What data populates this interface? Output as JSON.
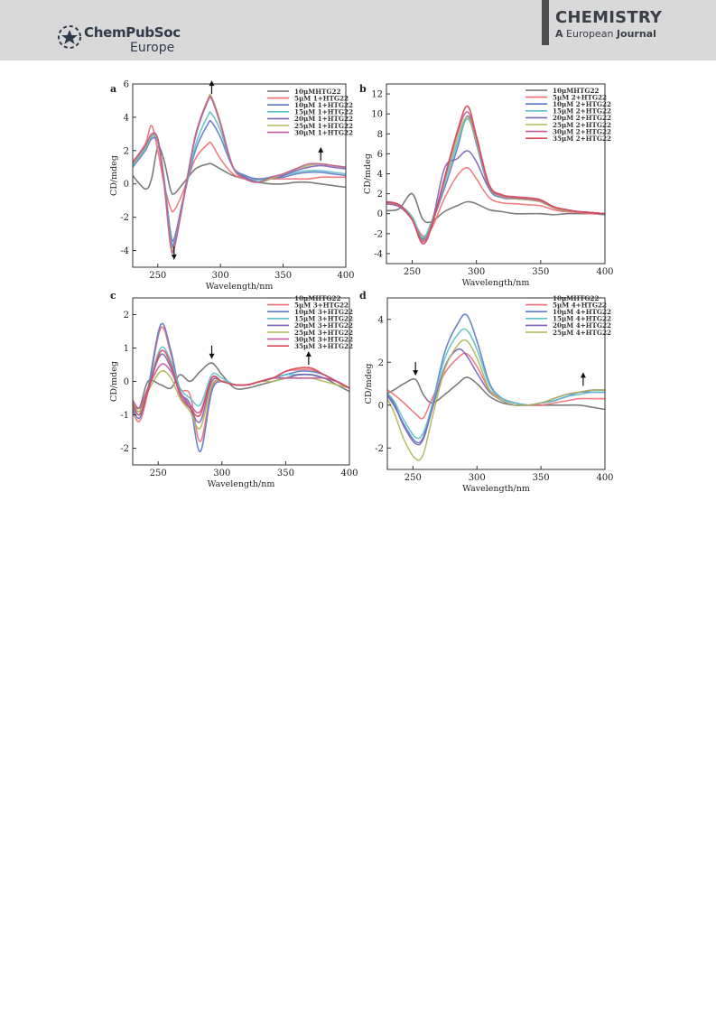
{
  "header": {
    "publisher": "ChemPubSoc",
    "publisher_region": "Europe",
    "journal_title": "CHEMISTRY",
    "journal_sub_a": "A",
    "journal_sub_b": "European",
    "journal_sub_c": "Journal"
  },
  "colors": {
    "series": [
      "#6e6e6e",
      "#ee6f73",
      "#5a78c4",
      "#5cc1c9",
      "#7a63b8",
      "#b0b65c",
      "#c25a9a",
      "#d7485a"
    ]
  },
  "chart_data": [
    {
      "panel": "a",
      "type": "line",
      "xlabel": "Wavelength/nm",
      "ylabel": "CD/mdeg",
      "xlim": [
        230,
        400
      ],
      "ylim": [
        -5,
        6
      ],
      "xticks": [
        250,
        300,
        350,
        400
      ],
      "yticks": [
        -4,
        -2,
        0,
        2,
        4,
        6
      ],
      "x": [
        230,
        240,
        245,
        250,
        255,
        260,
        263,
        270,
        280,
        290,
        293,
        300,
        310,
        320,
        330,
        340,
        350,
        360,
        370,
        380,
        390,
        400
      ],
      "series": [
        {
          "name": "10μMHTG22",
          "values": [
            0.5,
            -0.3,
            0.3,
            2.2,
            1.4,
            -0.3,
            -0.6,
            0.0,
            0.9,
            1.2,
            1.2,
            0.9,
            0.5,
            0.3,
            0.1,
            0.0,
            0.0,
            0.1,
            0.1,
            0.0,
            -0.1,
            -0.2
          ]
        },
        {
          "name": "5μM 1+HTG22",
          "values": [
            1.3,
            2.4,
            3.5,
            2.0,
            0.0,
            -1.4,
            -1.6,
            -0.5,
            1.5,
            2.4,
            2.4,
            1.5,
            0.6,
            0.3,
            0.3,
            0.3,
            0.3,
            0.3,
            0.3,
            0.4,
            0.4,
            0.4
          ]
        },
        {
          "name": "10μM 1+HTG22",
          "values": [
            1.0,
            2.0,
            2.7,
            2.5,
            0.3,
            -2.8,
            -3.3,
            -1.0,
            2.0,
            3.6,
            3.7,
            2.8,
            1.0,
            0.5,
            0.3,
            0.4,
            0.4,
            0.6,
            0.7,
            0.7,
            0.6,
            0.5
          ]
        },
        {
          "name": "15μM 1+HTG22",
          "values": [
            1.1,
            2.1,
            2.8,
            2.6,
            0.3,
            -3.0,
            -3.5,
            -1.1,
            2.3,
            4.1,
            4.2,
            3.2,
            1.0,
            0.4,
            0.2,
            0.4,
            0.5,
            0.7,
            0.8,
            0.8,
            0.7,
            0.6
          ]
        },
        {
          "name": "20μM 1+HTG22",
          "values": [
            1.2,
            2.2,
            2.9,
            2.7,
            0.2,
            -3.2,
            -3.6,
            -1.0,
            2.8,
            5.0,
            5.1,
            3.6,
            1.0,
            0.4,
            0.1,
            0.3,
            0.5,
            0.8,
            1.0,
            1.1,
            1.0,
            0.9
          ]
        },
        {
          "name": "25μM 1+HTG22",
          "values": [
            1.2,
            2.2,
            2.9,
            2.6,
            0.1,
            -3.4,
            -3.8,
            -1.1,
            2.9,
            5.1,
            5.2,
            3.7,
            1.0,
            0.3,
            0.1,
            0.3,
            0.6,
            0.9,
            1.1,
            1.2,
            1.1,
            1.0
          ]
        },
        {
          "name": "30μM 1+HTG22",
          "values": [
            1.3,
            2.3,
            3.0,
            2.7,
            0.0,
            -3.6,
            -3.9,
            -1.2,
            2.9,
            5.0,
            5.1,
            3.6,
            1.0,
            0.3,
            0.1,
            0.4,
            0.6,
            0.9,
            1.2,
            1.2,
            1.1,
            1.0
          ]
        }
      ],
      "annotations": [
        "arrow up at 293 nm",
        "arrow down at 263 nm",
        "arrow up at 380 nm"
      ]
    },
    {
      "panel": "b",
      "type": "line",
      "xlabel": "Wavelength/nm",
      "ylabel": "CD/mdeg",
      "xlim": [
        230,
        400
      ],
      "ylim": [
        -5,
        13
      ],
      "xticks": [
        250,
        300,
        350,
        400
      ],
      "yticks": [
        -4,
        -2,
        0,
        2,
        4,
        6,
        8,
        10,
        12
      ],
      "x": [
        230,
        240,
        250,
        258,
        265,
        275,
        285,
        293,
        300,
        310,
        320,
        330,
        340,
        350,
        360,
        370,
        380,
        390,
        400
      ],
      "series": [
        {
          "name": "10μMHTG22",
          "values": [
            0.3,
            0.5,
            2.0,
            -0.5,
            -0.8,
            0.2,
            0.8,
            1.2,
            1.0,
            0.4,
            0.2,
            0.0,
            0.0,
            0.0,
            -0.1,
            0.0,
            0.0,
            0.0,
            -0.1
          ]
        },
        {
          "name": "5μM 2+HTG22",
          "values": [
            1.0,
            0.7,
            -0.5,
            -2.2,
            -1.5,
            1.5,
            3.8,
            4.6,
            3.5,
            1.6,
            1.1,
            1.0,
            0.9,
            0.8,
            0.4,
            0.2,
            0.1,
            0.0,
            0.0
          ]
        },
        {
          "name": "10μM 2+HTG22",
          "values": [
            1.2,
            0.8,
            -0.4,
            -2.5,
            -1.0,
            2.5,
            6.5,
            9.8,
            7.0,
            2.5,
            1.6,
            1.5,
            1.4,
            1.2,
            0.6,
            0.3,
            0.2,
            0.1,
            0.0
          ]
        },
        {
          "name": "15μM 2+HTG22",
          "values": [
            1.2,
            0.9,
            -0.3,
            -2.4,
            -0.8,
            3.0,
            7.0,
            9.5,
            7.2,
            2.8,
            1.8,
            1.6,
            1.5,
            1.3,
            0.7,
            0.4,
            0.2,
            0.1,
            0.0
          ]
        },
        {
          "name": "20μM 2+HTG22",
          "values": [
            1.0,
            0.7,
            -0.6,
            -2.6,
            -1.2,
            4.5,
            5.5,
            6.3,
            5.2,
            2.5,
            1.7,
            1.5,
            1.4,
            1.2,
            0.6,
            0.3,
            0.2,
            0.1,
            0.0
          ]
        },
        {
          "name": "25μM 2+HTG22",
          "values": [
            1.1,
            0.8,
            -0.5,
            -2.7,
            -1.1,
            3.2,
            7.5,
            9.7,
            7.3,
            2.7,
            1.7,
            1.5,
            1.4,
            1.2,
            0.6,
            0.3,
            0.2,
            0.1,
            0.0
          ]
        },
        {
          "name": "30μM 2+HTG22",
          "values": [
            1.1,
            0.8,
            -0.6,
            -2.8,
            -1.2,
            3.4,
            8.0,
            10.2,
            7.6,
            2.8,
            1.8,
            1.6,
            1.5,
            1.3,
            0.7,
            0.4,
            0.2,
            0.1,
            0.0
          ]
        },
        {
          "name": "35μM 2+HTG22",
          "values": [
            1.2,
            0.9,
            -0.6,
            -3.0,
            -1.4,
            3.5,
            8.2,
            10.8,
            7.8,
            2.9,
            1.9,
            1.7,
            1.6,
            1.4,
            0.7,
            0.4,
            0.2,
            0.1,
            0.0
          ]
        }
      ]
    },
    {
      "panel": "c",
      "type": "line",
      "xlabel": "Wavelength/nm",
      "ylabel": "CD/mdeg",
      "xlim": [
        230,
        400
      ],
      "ylim": [
        -2.5,
        2.5
      ],
      "xticks": [
        250,
        300,
        350,
        400
      ],
      "yticks": [
        -2,
        -1,
        0,
        1,
        2
      ],
      "x": [
        228,
        235,
        242,
        252,
        260,
        267,
        275,
        283,
        292,
        300,
        310,
        320,
        330,
        340,
        350,
        360,
        370,
        380,
        390,
        400
      ],
      "series": [
        {
          "name": "10μMHTG22",
          "values": [
            -0.5,
            -0.8,
            0.0,
            -0.1,
            -0.2,
            0.2,
            0.0,
            0.3,
            0.55,
            0.2,
            -0.2,
            -0.2,
            -0.1,
            0.0,
            0.1,
            0.2,
            0.2,
            0.1,
            -0.1,
            -0.3
          ]
        },
        {
          "name": "5μM 3+HTG22",
          "values": [
            -0.7,
            -1.2,
            -0.3,
            1.6,
            0.8,
            -0.2,
            -0.4,
            -1.8,
            -0.2,
            0.0,
            -0.1,
            -0.1,
            0.0,
            0.1,
            0.3,
            0.35,
            0.35,
            0.2,
            0.0,
            -0.2
          ]
        },
        {
          "name": "10μM 3+HTG22",
          "values": [
            -0.6,
            -1.1,
            -0.2,
            1.7,
            0.9,
            -0.3,
            -0.7,
            -2.1,
            -0.3,
            0.0,
            -0.1,
            -0.1,
            0.0,
            0.1,
            0.2,
            0.3,
            0.3,
            0.2,
            0.0,
            -0.2
          ]
        },
        {
          "name": "15μM 3+HTG22",
          "values": [
            -0.5,
            -1.0,
            -0.2,
            1.0,
            0.6,
            -0.2,
            -0.5,
            -0.7,
            0.2,
            0.1,
            -0.1,
            -0.1,
            0.0,
            0.1,
            0.2,
            0.2,
            0.2,
            0.1,
            0.0,
            -0.2
          ]
        },
        {
          "name": "20μM 3+HTG22",
          "values": [
            -0.5,
            -0.9,
            -0.2,
            0.8,
            0.4,
            -0.3,
            -0.8,
            -1.2,
            0.0,
            0.0,
            -0.1,
            -0.1,
            0.0,
            0.1,
            0.1,
            0.2,
            0.2,
            0.1,
            0.0,
            -0.2
          ]
        },
        {
          "name": "25μM 3+HTG22",
          "values": [
            -0.5,
            -0.9,
            -0.3,
            0.3,
            0.1,
            -0.5,
            -0.9,
            -1.4,
            -0.1,
            0.0,
            -0.1,
            -0.1,
            0.0,
            0.0,
            0.1,
            0.1,
            0.1,
            0.0,
            -0.1,
            -0.2
          ]
        },
        {
          "name": "30μM 3+HTG22",
          "values": [
            -0.4,
            -0.8,
            -0.2,
            0.5,
            0.3,
            -0.3,
            -0.7,
            -0.9,
            0.1,
            0.0,
            -0.1,
            -0.1,
            0.0,
            0.1,
            0.1,
            0.1,
            0.1,
            0.1,
            0.0,
            -0.2
          ]
        },
        {
          "name": "35μM 3+HTG22",
          "values": [
            -0.5,
            -1.0,
            -0.3,
            0.9,
            0.5,
            -0.4,
            -0.8,
            -1.0,
            0.1,
            0.0,
            -0.1,
            -0.1,
            0.0,
            0.1,
            0.3,
            0.4,
            0.4,
            0.2,
            0.0,
            -0.2
          ]
        }
      ],
      "annotations": [
        "arrow down at 292 nm",
        "arrow up at 368 nm"
      ]
    },
    {
      "panel": "d",
      "type": "line",
      "xlabel": "Wavelength/nm",
      "ylabel": "CD/mdeg",
      "xlim": [
        230,
        400
      ],
      "ylim": [
        -3,
        5
      ],
      "xticks": [
        250,
        300,
        350,
        400
      ],
      "yticks": [
        -2,
        0,
        2,
        4
      ],
      "x": [
        228,
        235,
        243,
        252,
        258,
        265,
        275,
        285,
        292,
        300,
        310,
        320,
        330,
        340,
        350,
        360,
        370,
        380,
        390,
        400
      ],
      "series": [
        {
          "name": "10μMHTG22",
          "values": [
            0.5,
            0.7,
            1.0,
            1.2,
            0.5,
            0.1,
            0.5,
            1.0,
            1.3,
            1.0,
            0.4,
            0.1,
            0.0,
            0.0,
            0.0,
            0.0,
            0.0,
            0.0,
            -0.1,
            -0.2
          ]
        },
        {
          "name": "5μM 4+HTG22",
          "values": [
            0.8,
            0.5,
            0.1,
            -0.4,
            -0.6,
            0.3,
            1.5,
            2.2,
            2.4,
            1.8,
            0.7,
            0.3,
            0.1,
            0.0,
            0.0,
            0.1,
            0.2,
            0.3,
            0.3,
            0.3
          ]
        },
        {
          "name": "10μM 4+HTG22",
          "values": [
            0.6,
            0.0,
            -0.9,
            -1.7,
            -1.5,
            0.0,
            2.5,
            3.8,
            4.2,
            3.0,
            1.0,
            0.3,
            0.1,
            0.0,
            0.1,
            0.2,
            0.4,
            0.6,
            0.6,
            0.6
          ]
        },
        {
          "name": "15μM 4+HTG22",
          "values": [
            0.7,
            0.2,
            -0.7,
            -1.5,
            -1.3,
            0.0,
            2.2,
            3.3,
            3.5,
            2.6,
            0.9,
            0.3,
            0.1,
            0.0,
            0.1,
            0.2,
            0.4,
            0.5,
            0.6,
            0.6
          ]
        },
        {
          "name": "20μM 4+HTG22",
          "values": [
            0.6,
            0.1,
            -1.0,
            -1.8,
            -1.6,
            -0.2,
            1.8,
            2.6,
            2.3,
            1.5,
            0.6,
            0.2,
            0.0,
            0.0,
            0.1,
            0.3,
            0.5,
            0.6,
            0.7,
            0.7
          ]
        },
        {
          "name": "25μM 4+HTG22",
          "values": [
            0.5,
            -0.3,
            -1.6,
            -2.5,
            -2.3,
            -0.6,
            1.7,
            2.8,
            3.0,
            2.2,
            0.7,
            0.2,
            0.0,
            0.0,
            0.1,
            0.3,
            0.5,
            0.6,
            0.7,
            0.7
          ]
        }
      ],
      "annotations": [
        "arrow down at 252 nm",
        "arrow up at 383 nm"
      ]
    }
  ]
}
